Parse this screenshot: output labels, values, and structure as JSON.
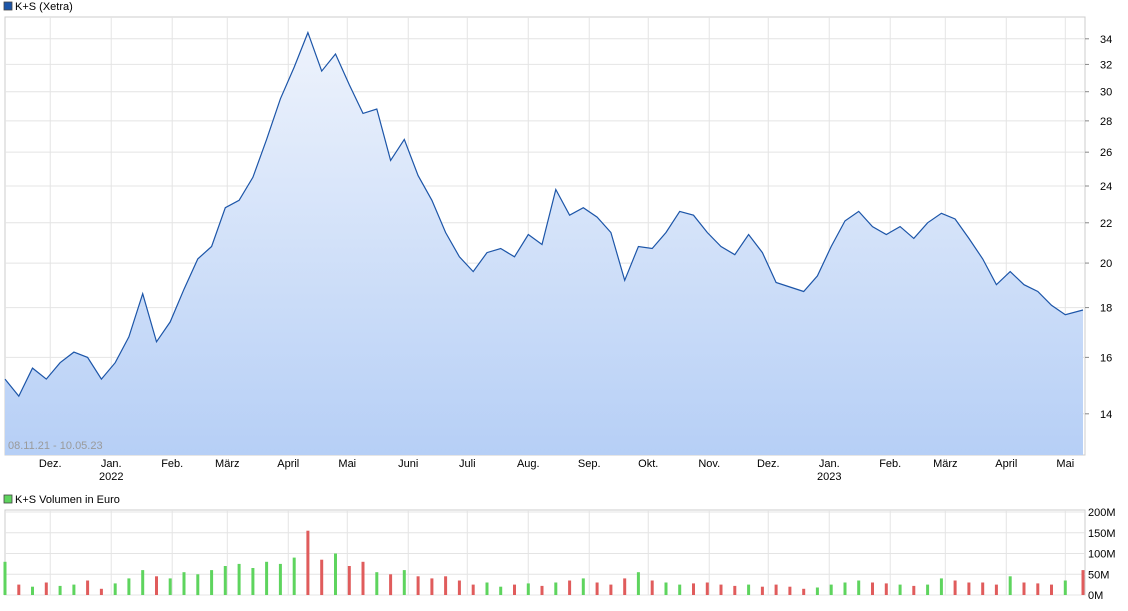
{
  "chart_data": [
    {
      "type": "area",
      "title": "K+S (Xetra)",
      "date_range_label": "08.11.21 - 10.05.23",
      "x_ticks": [
        "Dez.",
        "Jan.",
        "Feb.",
        "März",
        "April",
        "Mai",
        "Juni",
        "Juli",
        "Aug.",
        "Sep.",
        "Okt.",
        "Nov.",
        "Dez.",
        "Jan.",
        "Feb.",
        "März",
        "April",
        "Mai"
      ],
      "year_labels": [
        {
          "after_tick": 1,
          "label": "2022"
        },
        {
          "after_tick": 13,
          "label": "2023"
        }
      ],
      "y_scale": "log",
      "ylim": [
        12.7,
        35.8
      ],
      "y_ticks": [
        14,
        16,
        18,
        20,
        22,
        24,
        26,
        28,
        30,
        32,
        34
      ],
      "grid": true,
      "colors": {
        "line": "#1c55a8",
        "fill_top": "#eef3fc",
        "fill_bottom": "#b6cff6",
        "legend": "#1c55a8"
      },
      "x": [
        "2021-11-08",
        "2021-11-15",
        "2021-11-22",
        "2021-11-29",
        "2021-12-06",
        "2021-12-13",
        "2021-12-20",
        "2021-12-27",
        "2022-01-03",
        "2022-01-10",
        "2022-01-17",
        "2022-01-24",
        "2022-01-31",
        "2022-02-07",
        "2022-02-14",
        "2022-02-21",
        "2022-02-28",
        "2022-03-07",
        "2022-03-14",
        "2022-03-21",
        "2022-03-28",
        "2022-04-04",
        "2022-04-11",
        "2022-04-18",
        "2022-04-25",
        "2022-05-02",
        "2022-05-09",
        "2022-05-16",
        "2022-05-23",
        "2022-05-30",
        "2022-06-06",
        "2022-06-13",
        "2022-06-20",
        "2022-06-27",
        "2022-07-04",
        "2022-07-11",
        "2022-07-18",
        "2022-07-25",
        "2022-08-01",
        "2022-08-08",
        "2022-08-15",
        "2022-08-22",
        "2022-08-29",
        "2022-09-05",
        "2022-09-12",
        "2022-09-19",
        "2022-09-26",
        "2022-10-03",
        "2022-10-10",
        "2022-10-17",
        "2022-10-24",
        "2022-10-31",
        "2022-11-07",
        "2022-11-14",
        "2022-11-21",
        "2022-11-28",
        "2022-12-05",
        "2022-12-12",
        "2022-12-19",
        "2022-12-26",
        "2023-01-02",
        "2023-01-09",
        "2023-01-16",
        "2023-01-23",
        "2023-01-30",
        "2023-02-06",
        "2023-02-13",
        "2023-02-20",
        "2023-02-27",
        "2023-03-06",
        "2023-03-13",
        "2023-03-20",
        "2023-03-27",
        "2023-04-03",
        "2023-04-10",
        "2023-04-17",
        "2023-04-24",
        "2023-05-01",
        "2023-05-10"
      ],
      "values": [
        15.2,
        14.6,
        15.6,
        15.2,
        15.8,
        16.2,
        16.0,
        15.2,
        15.8,
        16.8,
        18.6,
        16.6,
        17.4,
        18.8,
        20.2,
        20.8,
        22.8,
        23.2,
        24.5,
        26.8,
        29.5,
        31.8,
        34.5,
        31.5,
        32.8,
        30.5,
        28.5,
        28.8,
        25.5,
        26.8,
        24.6,
        23.2,
        21.5,
        20.3,
        19.6,
        20.5,
        20.7,
        20.3,
        21.4,
        20.9,
        23.8,
        22.4,
        22.8,
        22.3,
        21.5,
        19.2,
        20.8,
        20.7,
        21.5,
        22.6,
        22.4,
        21.5,
        20.8,
        20.4,
        21.4,
        20.5,
        19.1,
        18.9,
        18.7,
        19.4,
        20.8,
        22.1,
        22.6,
        21.8,
        21.4,
        21.8,
        21.2,
        22.0,
        22.5,
        22.2,
        21.2,
        20.2,
        19.0,
        19.6,
        19.0,
        18.7,
        18.1,
        17.7,
        17.9
      ]
    },
    {
      "type": "bar",
      "title": "K+S Volumen in Euro",
      "ylim": [
        0,
        200
      ],
      "y_ticks": [
        "0M",
        "50M",
        "100M",
        "150M",
        "200M"
      ],
      "y_tick_values": [
        0,
        50,
        100,
        150,
        200
      ],
      "grid": true,
      "colors": {
        "up": "#5ed45e",
        "down": "#e05c5c",
        "legend": "#5ed45e"
      },
      "x": [
        "2021-11-08",
        "2021-11-15",
        "2021-11-22",
        "2021-11-29",
        "2021-12-06",
        "2021-12-13",
        "2021-12-20",
        "2021-12-27",
        "2022-01-03",
        "2022-01-10",
        "2022-01-17",
        "2022-01-24",
        "2022-01-31",
        "2022-02-07",
        "2022-02-14",
        "2022-02-21",
        "2022-02-28",
        "2022-03-07",
        "2022-03-14",
        "2022-03-21",
        "2022-03-28",
        "2022-04-04",
        "2022-04-11",
        "2022-04-18",
        "2022-04-25",
        "2022-05-02",
        "2022-05-09",
        "2022-05-16",
        "2022-05-23",
        "2022-05-30",
        "2022-06-06",
        "2022-06-13",
        "2022-06-20",
        "2022-06-27",
        "2022-07-04",
        "2022-07-11",
        "2022-07-18",
        "2022-07-25",
        "2022-08-01",
        "2022-08-08",
        "2022-08-15",
        "2022-08-22",
        "2022-08-29",
        "2022-09-05",
        "2022-09-12",
        "2022-09-19",
        "2022-09-26",
        "2022-10-03",
        "2022-10-10",
        "2022-10-17",
        "2022-10-24",
        "2022-10-31",
        "2022-11-07",
        "2022-11-14",
        "2022-11-21",
        "2022-11-28",
        "2022-12-05",
        "2022-12-12",
        "2022-12-19",
        "2022-12-26",
        "2023-01-02",
        "2023-01-09",
        "2023-01-16",
        "2023-01-23",
        "2023-01-30",
        "2023-02-06",
        "2023-02-13",
        "2023-02-20",
        "2023-02-27",
        "2023-03-06",
        "2023-03-13",
        "2023-03-20",
        "2023-03-27",
        "2023-04-03",
        "2023-04-10",
        "2023-04-17",
        "2023-04-24",
        "2023-05-01",
        "2023-05-10"
      ],
      "values": [
        80,
        25,
        20,
        30,
        22,
        25,
        35,
        15,
        28,
        40,
        60,
        45,
        40,
        55,
        50,
        60,
        70,
        75,
        65,
        80,
        75,
        90,
        155,
        85,
        100,
        70,
        80,
        55,
        50,
        60,
        45,
        40,
        45,
        35,
        25,
        30,
        20,
        25,
        28,
        22,
        30,
        35,
        40,
        30,
        25,
        40,
        55,
        35,
        30,
        25,
        28,
        30,
        25,
        22,
        25,
        20,
        25,
        20,
        15,
        18,
        25,
        30,
        35,
        30,
        28,
        25,
        22,
        25,
        40,
        35,
        30,
        30,
        25,
        45,
        30,
        28,
        25,
        35,
        60
      ],
      "up": [
        true,
        false,
        true,
        false,
        true,
        true,
        false,
        false,
        true,
        true,
        true,
        false,
        true,
        true,
        true,
        true,
        true,
        true,
        true,
        true,
        true,
        true,
        false,
        false,
        true,
        false,
        false,
        true,
        false,
        true,
        false,
        false,
        false,
        false,
        false,
        true,
        true,
        false,
        true,
        false,
        true,
        false,
        true,
        false,
        false,
        false,
        true,
        false,
        true,
        true,
        false,
        false,
        false,
        false,
        true,
        false,
        false,
        false,
        false,
        true,
        true,
        true,
        true,
        false,
        false,
        true,
        false,
        true,
        true,
        false,
        false,
        false,
        false,
        true,
        false,
        false,
        false,
        true,
        false
      ]
    }
  ]
}
